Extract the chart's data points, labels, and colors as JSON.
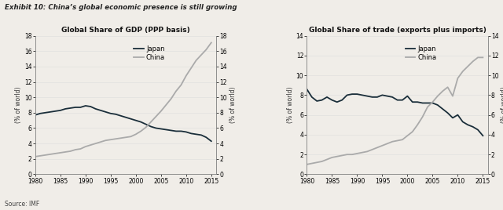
{
  "title_main": "Exhibit 10: China’s global economic presence is still growing",
  "source": "Source: IMF",
  "background_color": "#f0ede8",
  "left_chart": {
    "title": "Global Share of GDP (PPP basis)",
    "ylabel_left": "(% of world)",
    "ylabel_right": "(% of world)",
    "ylim": [
      0,
      18
    ],
    "yticks": [
      0,
      2,
      4,
      6,
      8,
      10,
      12,
      14,
      16,
      18
    ],
    "xlim": [
      1980,
      2016
    ],
    "xticks": [
      1980,
      1985,
      1990,
      1995,
      2000,
      2005,
      2010,
      2015
    ],
    "japan_x": [
      1980,
      1981,
      1982,
      1983,
      1984,
      1985,
      1986,
      1987,
      1988,
      1989,
      1990,
      1991,
      1992,
      1993,
      1994,
      1995,
      1996,
      1997,
      1998,
      1999,
      2000,
      2001,
      2002,
      2003,
      2004,
      2005,
      2006,
      2007,
      2008,
      2009,
      2010,
      2011,
      2012,
      2013,
      2014,
      2015
    ],
    "japan_y": [
      7.7,
      7.9,
      8.0,
      8.1,
      8.2,
      8.3,
      8.5,
      8.6,
      8.7,
      8.7,
      8.9,
      8.8,
      8.5,
      8.3,
      8.1,
      7.9,
      7.8,
      7.6,
      7.4,
      7.2,
      7.0,
      6.8,
      6.5,
      6.2,
      6.0,
      5.9,
      5.8,
      5.7,
      5.6,
      5.6,
      5.5,
      5.3,
      5.2,
      5.1,
      4.8,
      4.3
    ],
    "china_x": [
      1980,
      1981,
      1982,
      1983,
      1984,
      1985,
      1986,
      1987,
      1988,
      1989,
      1990,
      1991,
      1992,
      1993,
      1994,
      1995,
      1996,
      1997,
      1998,
      1999,
      2000,
      2001,
      2002,
      2003,
      2004,
      2005,
      2006,
      2007,
      2008,
      2009,
      2010,
      2011,
      2012,
      2013,
      2014,
      2015
    ],
    "china_y": [
      2.3,
      2.4,
      2.5,
      2.6,
      2.7,
      2.8,
      2.9,
      3.0,
      3.2,
      3.3,
      3.6,
      3.8,
      4.0,
      4.2,
      4.4,
      4.5,
      4.6,
      4.7,
      4.8,
      4.9,
      5.2,
      5.6,
      6.1,
      6.8,
      7.5,
      8.2,
      9.0,
      9.8,
      10.8,
      11.6,
      12.8,
      13.8,
      14.8,
      15.5,
      16.2,
      17.1
    ],
    "japan_color": "#1a2e3a",
    "china_color": "#aaaaaa",
    "japan_label": "Japan",
    "china_label": "China"
  },
  "right_chart": {
    "title": "Global Share of trade (exports plus imports)",
    "ylabel_left": "(% of world)",
    "ylabel_right": "(% of world)",
    "ylim": [
      0,
      14
    ],
    "yticks": [
      0,
      2,
      4,
      6,
      8,
      10,
      12,
      14
    ],
    "xlim": [
      1980,
      2016
    ],
    "xticks": [
      1980,
      1985,
      1990,
      1995,
      2000,
      2005,
      2010,
      2015
    ],
    "japan_x": [
      1980,
      1981,
      1982,
      1983,
      1984,
      1985,
      1986,
      1987,
      1988,
      1989,
      1990,
      1991,
      1992,
      1993,
      1994,
      1995,
      1996,
      1997,
      1998,
      1999,
      2000,
      2001,
      2002,
      2003,
      2004,
      2005,
      2006,
      2007,
      2008,
      2009,
      2010,
      2011,
      2012,
      2013,
      2014,
      2015
    ],
    "japan_y": [
      8.6,
      7.8,
      7.4,
      7.5,
      7.8,
      7.5,
      7.3,
      7.5,
      8.0,
      8.1,
      8.1,
      8.0,
      7.9,
      7.8,
      7.8,
      8.0,
      7.9,
      7.8,
      7.5,
      7.5,
      7.9,
      7.3,
      7.3,
      7.2,
      7.2,
      7.2,
      7.0,
      6.6,
      6.2,
      5.7,
      6.0,
      5.3,
      5.0,
      4.8,
      4.5,
      3.9
    ],
    "china_x": [
      1980,
      1981,
      1982,
      1983,
      1984,
      1985,
      1986,
      1987,
      1988,
      1989,
      1990,
      1991,
      1992,
      1993,
      1994,
      1995,
      1996,
      1997,
      1998,
      1999,
      2000,
      2001,
      2002,
      2003,
      2004,
      2005,
      2006,
      2007,
      2008,
      2009,
      2010,
      2011,
      2012,
      2013,
      2014,
      2015
    ],
    "china_y": [
      1.0,
      1.1,
      1.2,
      1.3,
      1.5,
      1.7,
      1.8,
      1.9,
      2.0,
      2.0,
      2.1,
      2.2,
      2.3,
      2.5,
      2.7,
      2.9,
      3.1,
      3.3,
      3.4,
      3.5,
      3.9,
      4.3,
      5.0,
      5.8,
      6.8,
      7.3,
      7.9,
      8.4,
      8.8,
      7.9,
      9.7,
      10.4,
      10.9,
      11.4,
      11.8,
      11.8
    ],
    "japan_color": "#1a2e3a",
    "china_color": "#aaaaaa",
    "japan_label": "Japan",
    "china_label": "China"
  }
}
